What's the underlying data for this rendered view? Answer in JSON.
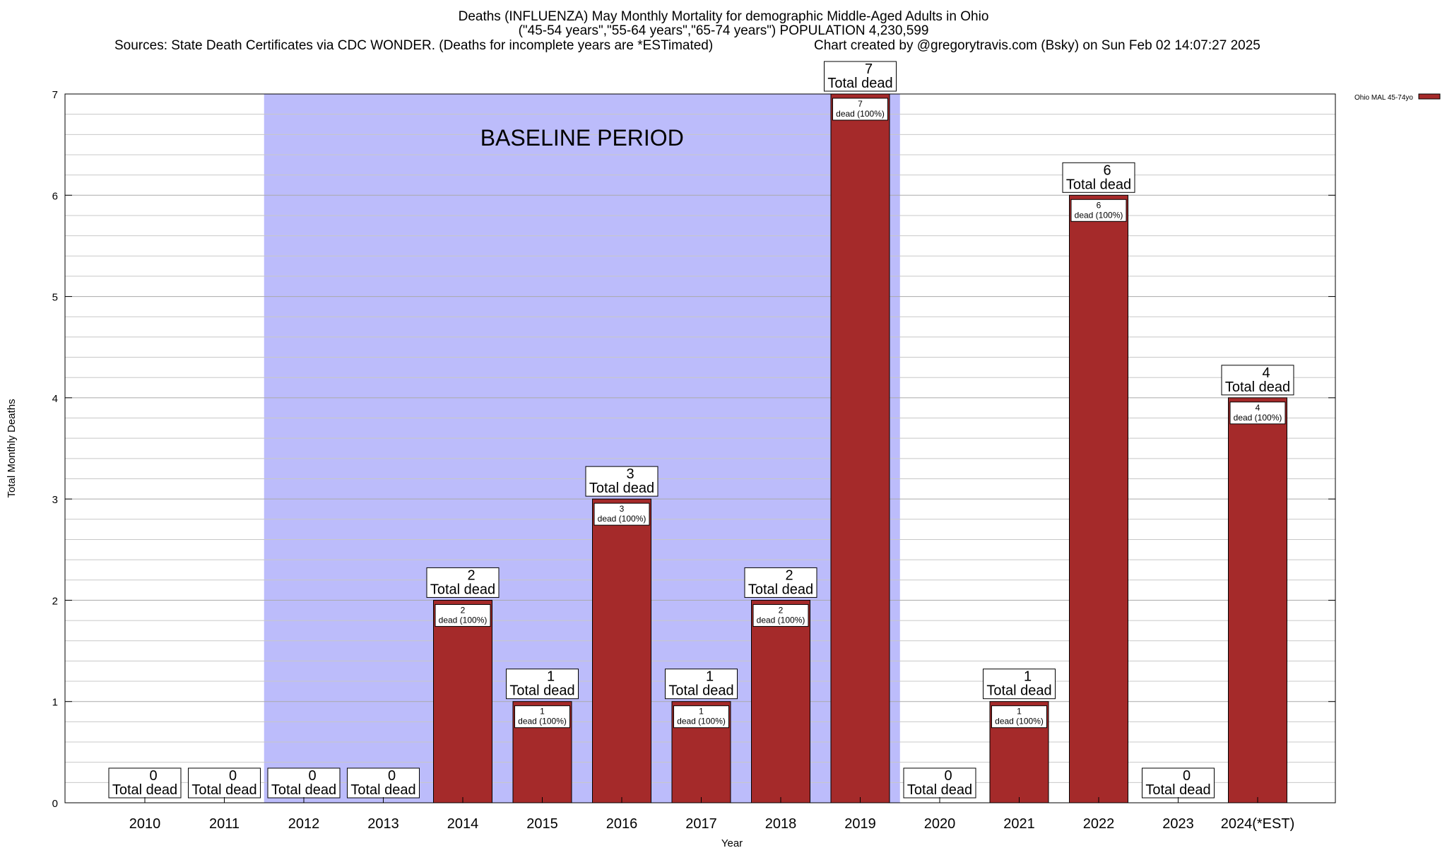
{
  "chart_data": {
    "type": "bar",
    "title": "Deaths (INFLUENZA) May Monthly Mortality for demographic Middle-Aged Adults in Ohio",
    "subtitle": "(\"45-54 years\",\"55-64 years\",\"65-74 years\") POPULATION 4,230,599",
    "sources": "Sources: State Death Certificates via CDC WONDER. (Deaths for incomplete years are *ESTimated)",
    "credit": "Chart created by @gregorytravis.com (Bsky) on Sun Feb 02 14:07:27 2025",
    "xlabel": "Year",
    "ylabel": "Total Monthly Deaths",
    "ylim": [
      0,
      7
    ],
    "yticks": [
      0,
      1,
      2,
      3,
      4,
      5,
      6,
      7
    ],
    "categories": [
      "2010",
      "2011",
      "2012",
      "2013",
      "2014",
      "2015",
      "2016",
      "2017",
      "2018",
      "2019",
      "2020",
      "2021",
      "2022",
      "2023",
      "2024(*EST)"
    ],
    "series": [
      {
        "name": "Ohio MAL 45-74yo",
        "color": "#a52a2a",
        "values": [
          0,
          0,
          0,
          0,
          2,
          1,
          3,
          1,
          2,
          7,
          0,
          1,
          6,
          0,
          4
        ]
      }
    ],
    "total_label": "Total dead",
    "inner_label_suffix": "dead (100%)",
    "baseline": {
      "label": "BASELINE PERIOD",
      "from": "2012",
      "to": "2019",
      "color": "#bcbcfb"
    },
    "grid": true,
    "legend_position": "top-right"
  }
}
